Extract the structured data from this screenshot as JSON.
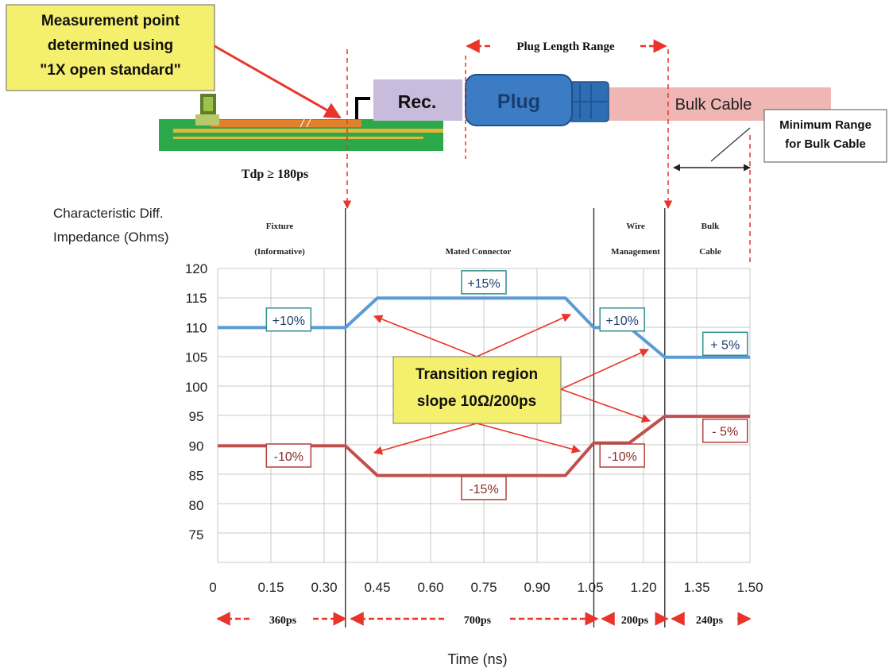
{
  "callouts": {
    "measurement": [
      "Measurement point",
      "determined using",
      "\"1X open standard\""
    ],
    "plug_length": "Plug Length Range",
    "min_range": [
      "Minimum Range",
      "for Bulk Cable"
    ],
    "tdp": "Tdp ≥ 180ps",
    "transition": [
      "Transition region",
      "slope 10Ω/200ps"
    ]
  },
  "assembly": {
    "rec": "Rec.",
    "plug": "Plug",
    "bulk": "Bulk Cable"
  },
  "regions": [
    {
      "lines": [
        "Fixture",
        "(Informative)"
      ]
    },
    {
      "lines": [
        "Mated Connector"
      ]
    },
    {
      "lines": [
        "Wire",
        "Management"
      ]
    },
    {
      "lines": [
        "Bulk",
        "Cable"
      ]
    }
  ],
  "durations": [
    "360ps",
    "700ps",
    "200ps",
    "240ps"
  ],
  "colors": {
    "upper": "#5b9bd5",
    "lower": "#c0504d",
    "annotation_red": "#e8342a",
    "callout_fill": "#f5ef6e",
    "rec_fill": "#c9bbdb",
    "plug_fill": "#3b7cc4",
    "bulk_fill": "#efb6b3",
    "pcb_fill": "#2aa84a"
  },
  "chart_data": {
    "type": "line",
    "ylabel": [
      "Characteristic Diff.",
      "Impedance (Ohms)"
    ],
    "xlabel": "Time (ns)",
    "ylim": [
      75,
      120
    ],
    "yticks": [
      120,
      115,
      110,
      105,
      100,
      95,
      90,
      85,
      80,
      75
    ],
    "xlim": [
      0,
      1.5
    ],
    "xticks": [
      "0",
      "0.15",
      "0.30",
      "0.45",
      "0.60",
      "0.75",
      "0.90",
      "1.05",
      "1.20",
      "1.35",
      "1.50"
    ],
    "grid": true,
    "region_boundaries": [
      0.36,
      1.06,
      1.26
    ],
    "series": [
      {
        "x": [
          0,
          0.36,
          0.45,
          0.98,
          1.06,
          1.16,
          1.26,
          1.5
        ],
        "y": [
          110,
          110,
          115,
          115,
          110,
          110,
          105,
          105
        ]
      },
      {
        "x": [
          0,
          0.36,
          0.45,
          0.98,
          1.06,
          1.16,
          1.26,
          1.5
        ],
        "y": [
          90,
          90,
          85,
          85,
          90.5,
          90.5,
          95,
          95
        ]
      }
    ],
    "boxes": [
      {
        "text": "+10%",
        "x": 0.2,
        "y": 111.3,
        "series": 0
      },
      {
        "text": "+15%",
        "x": 0.75,
        "y": 117.6,
        "series": 0
      },
      {
        "text": "+10%",
        "x": 1.14,
        "y": 111.3,
        "series": 0
      },
      {
        "text": "+ 5%",
        "x": 1.43,
        "y": 107.2,
        "series": 0
      },
      {
        "text": "-10%",
        "x": 0.2,
        "y": 88.3,
        "series": 1
      },
      {
        "text": "-15%",
        "x": 0.75,
        "y": 82.8,
        "series": 1
      },
      {
        "text": "-10%",
        "x": 1.14,
        "y": 88.3,
        "series": 1
      },
      {
        "text": "- 5%",
        "x": 1.43,
        "y": 92.5,
        "series": 1
      }
    ]
  }
}
